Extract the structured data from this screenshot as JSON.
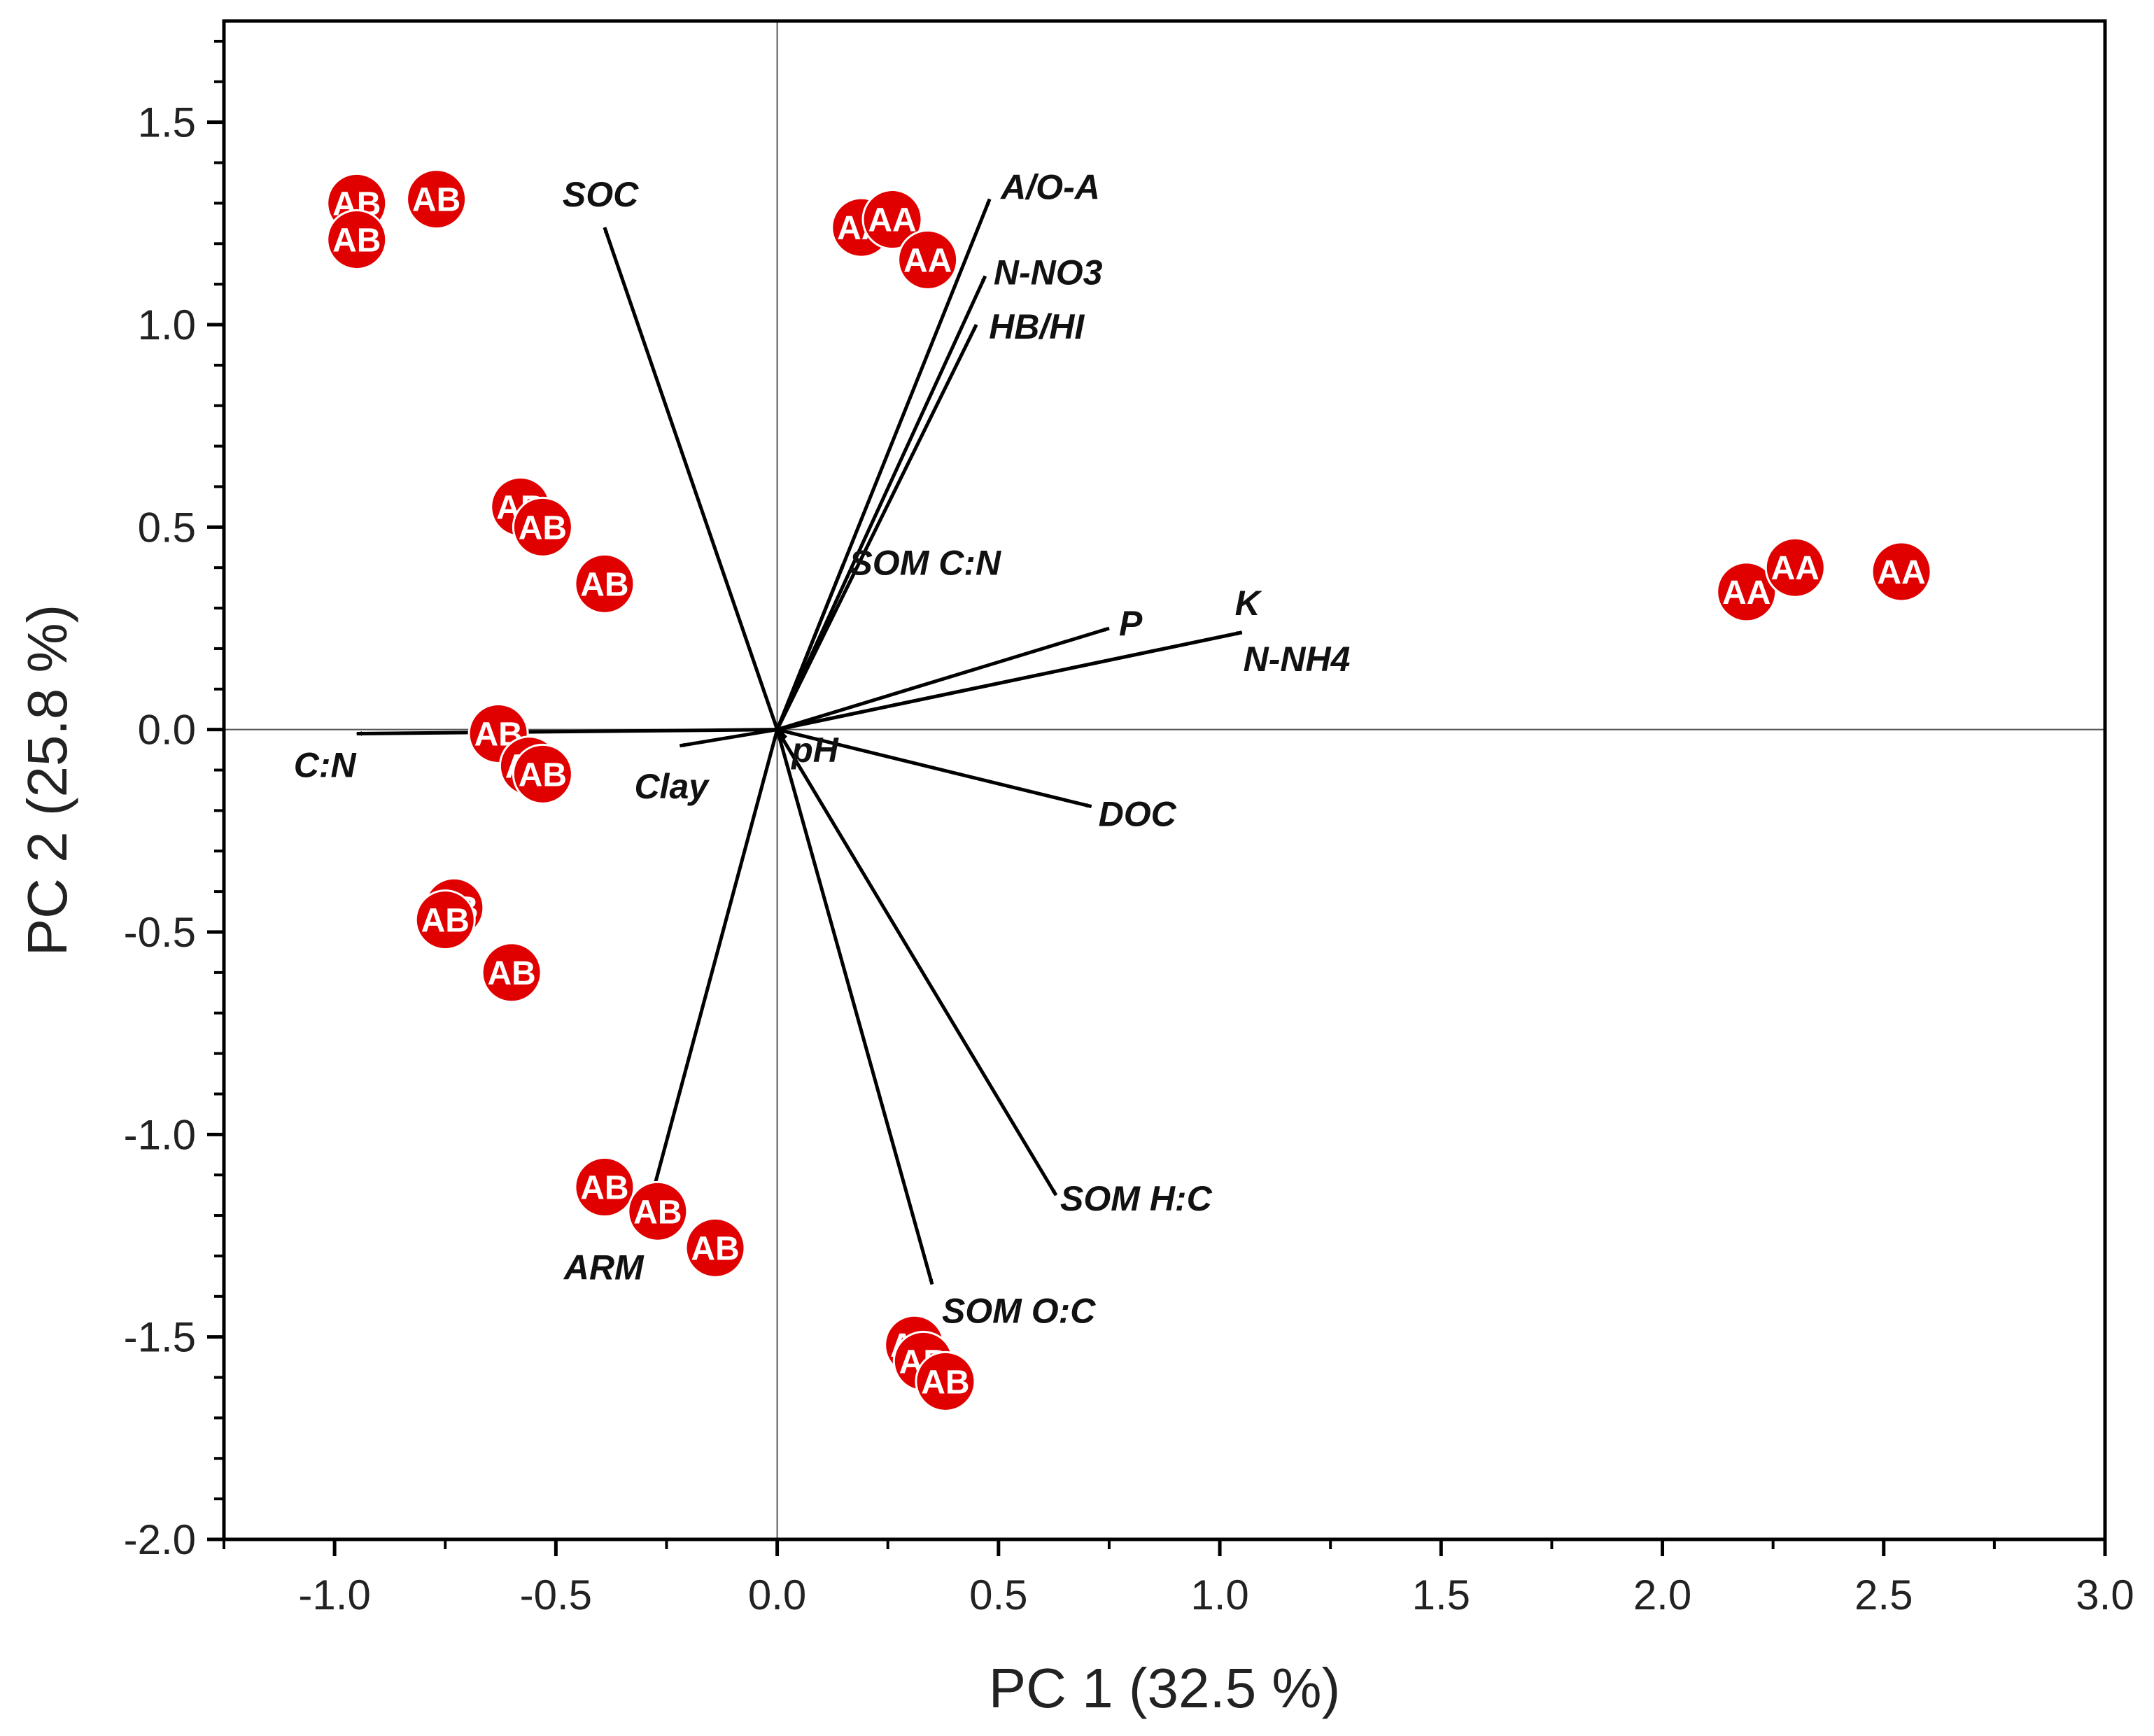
{
  "chart_data": {
    "type": "scatter",
    "subtype": "pca-biplot",
    "title": "",
    "xlabel": "PC 1 (32.5 %)",
    "ylabel": "PC 2 (25.8 %)",
    "xlim": [
      -1.25,
      3.0
    ],
    "ylim": [
      -2.0,
      1.75
    ],
    "xticks": [
      -1.0,
      -0.5,
      0.0,
      0.5,
      1.0,
      1.5,
      2.0,
      2.5,
      3.0
    ],
    "xtick_labels": [
      "-1.0",
      "-0.5",
      "0.0",
      "0.5",
      "1.0",
      "1.5",
      "2.0",
      "2.5",
      "3.0"
    ],
    "yticks": [
      1.5,
      1.0,
      0.5,
      0.0,
      -0.5,
      -1.0,
      -1.5,
      -2.0
    ],
    "ytick_labels": [
      "1.5",
      "1.0",
      "0.5",
      "0.0",
      "-0.5",
      "-1.0",
      "-1.5",
      "-2.0"
    ],
    "grid": false,
    "zero_lines": true,
    "point_color": "#e00000",
    "vector_color": "#000000",
    "loading_vectors": [
      {
        "name": "SOC",
        "x": -0.39,
        "y": 1.24
      },
      {
        "name": "A/O-A",
        "x": 0.48,
        "y": 1.31
      },
      {
        "name": "N-NO3",
        "x": 0.47,
        "y": 1.12
      },
      {
        "name": "HB/HI",
        "x": 0.45,
        "y": 1.0
      },
      {
        "name": "SOM C:N",
        "x": 0.15,
        "y": 0.41
      },
      {
        "name": "P",
        "x": 0.75,
        "y": 0.25
      },
      {
        "name": "K",
        "x": 1.05,
        "y": 0.24
      },
      {
        "name": "N-NH4",
        "x": 1.05,
        "y": 0.24
      },
      {
        "name": "C:N",
        "x": -0.95,
        "y": -0.01
      },
      {
        "name": "Clay",
        "x": -0.22,
        "y": -0.04
      },
      {
        "name": "pH",
        "x": 0.02,
        "y": -0.02
      },
      {
        "name": "DOC",
        "x": 0.71,
        "y": -0.19
      },
      {
        "name": "SOM H:C",
        "x": 0.63,
        "y": -1.15
      },
      {
        "name": "SOM O:C",
        "x": 0.35,
        "y": -1.37
      },
      {
        "name": "ARM",
        "x": -0.3,
        "y": -1.22
      }
    ],
    "series": [
      {
        "name": "AB",
        "points": [
          {
            "x": -0.95,
            "y": 1.3
          },
          {
            "x": -0.95,
            "y": 1.21
          },
          {
            "x": -0.77,
            "y": 1.31
          },
          {
            "x": -0.58,
            "y": 0.55
          },
          {
            "x": -0.53,
            "y": 0.5
          },
          {
            "x": -0.39,
            "y": 0.36
          },
          {
            "x": -0.63,
            "y": -0.01
          },
          {
            "x": -0.56,
            "y": -0.09
          },
          {
            "x": -0.53,
            "y": -0.11
          },
          {
            "x": -0.73,
            "y": -0.44
          },
          {
            "x": -0.75,
            "y": -0.47
          },
          {
            "x": -0.6,
            "y": -0.6
          },
          {
            "x": -0.39,
            "y": -1.13
          },
          {
            "x": -0.27,
            "y": -1.19
          },
          {
            "x": -0.14,
            "y": -1.28
          },
          {
            "x": 0.31,
            "y": -1.52
          },
          {
            "x": 0.33,
            "y": -1.56
          },
          {
            "x": 0.38,
            "y": -1.61
          }
        ]
      },
      {
        "name": "AA",
        "points": [
          {
            "x": 0.19,
            "y": 1.24
          },
          {
            "x": 0.26,
            "y": 1.26
          },
          {
            "x": 0.34,
            "y": 1.16
          },
          {
            "x": 2.19,
            "y": 0.34
          },
          {
            "x": 2.3,
            "y": 0.4
          },
          {
            "x": 2.54,
            "y": 0.39
          }
        ]
      }
    ]
  }
}
